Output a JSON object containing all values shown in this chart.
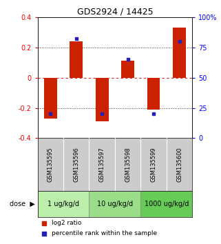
{
  "title": "GDS2924 / 14425",
  "samples": [
    "GSM135595",
    "GSM135596",
    "GSM135597",
    "GSM135598",
    "GSM135599",
    "GSM135600"
  ],
  "log2_ratio": [
    -0.27,
    0.24,
    -0.29,
    0.11,
    -0.21,
    0.33
  ],
  "percentile_rank": [
    20,
    82,
    20,
    65,
    20,
    80
  ],
  "dose_groups": [
    {
      "label": "1 ug/kg/d",
      "samples": [
        0,
        1
      ],
      "color": "#bbeeaa"
    },
    {
      "label": "10 ug/kg/d",
      "samples": [
        2,
        3
      ],
      "color": "#99dd88"
    },
    {
      "label": "1000 ug/kg/d",
      "samples": [
        4,
        5
      ],
      "color": "#66cc55"
    }
  ],
  "bar_color": "#cc2200",
  "dot_color": "#2222bb",
  "ylim_left": [
    -0.4,
    0.4
  ],
  "ylim_right": [
    0,
    100
  ],
  "yticks_left": [
    -0.4,
    -0.2,
    0.0,
    0.2,
    0.4
  ],
  "ytick_labels_left": [
    "-0.4",
    "-0.2",
    "0",
    "0.2",
    "0.4"
  ],
  "yticks_right": [
    0,
    25,
    50,
    75,
    100
  ],
  "ytick_labels_right": [
    "0",
    "25",
    "50",
    "75",
    "100%"
  ],
  "hline_zero_color": "#dd2222",
  "hline_dotted_color": "#444444",
  "bg_color": "#ffffff",
  "plot_bg": "#ffffff",
  "sample_bg": "#cccccc",
  "legend_log2": "log2 ratio",
  "legend_pct": "percentile rank within the sample",
  "dose_label": "dose"
}
